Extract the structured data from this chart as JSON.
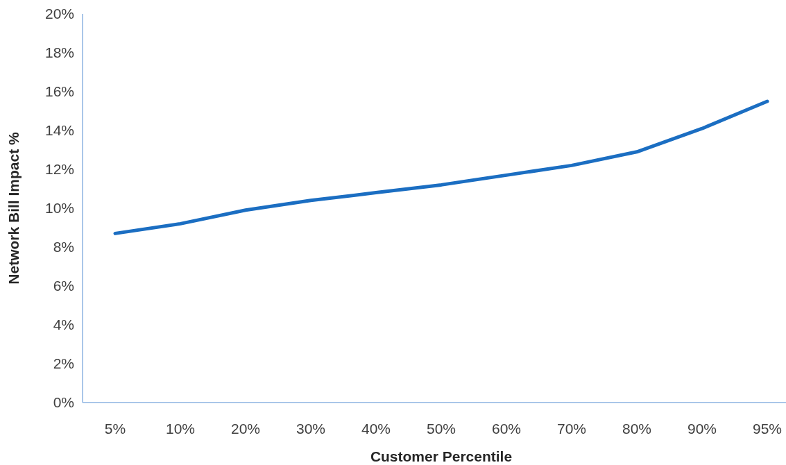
{
  "chart_data": {
    "type": "line",
    "xlabel": "Customer Percentile",
    "ylabel": "Network Bill Impact %",
    "categories": [
      "5%",
      "10%",
      "20%",
      "30%",
      "40%",
      "50%",
      "60%",
      "70%",
      "80%",
      "90%",
      "95%"
    ],
    "series": [
      {
        "color": "#1b6ec2",
        "values": [
          8.7,
          9.2,
          9.9,
          10.4,
          10.8,
          11.2,
          11.7,
          12.2,
          12.9,
          14.1,
          15.5
        ]
      }
    ],
    "ylim": [
      0,
      20
    ],
    "yticks": [
      {
        "value": 0,
        "label": "0%"
      },
      {
        "value": 2,
        "label": "2%"
      },
      {
        "value": 4,
        "label": "4%"
      },
      {
        "value": 6,
        "label": "6%"
      },
      {
        "value": 8,
        "label": "8%"
      },
      {
        "value": 10,
        "label": "10%"
      },
      {
        "value": 12,
        "label": "12%"
      },
      {
        "value": 14,
        "label": "14%"
      },
      {
        "value": 16,
        "label": "16%"
      },
      {
        "value": 18,
        "label": "18%"
      },
      {
        "value": 20,
        "label": "20%"
      }
    ],
    "grid": false,
    "marker": "none",
    "line_style": "solid"
  }
}
